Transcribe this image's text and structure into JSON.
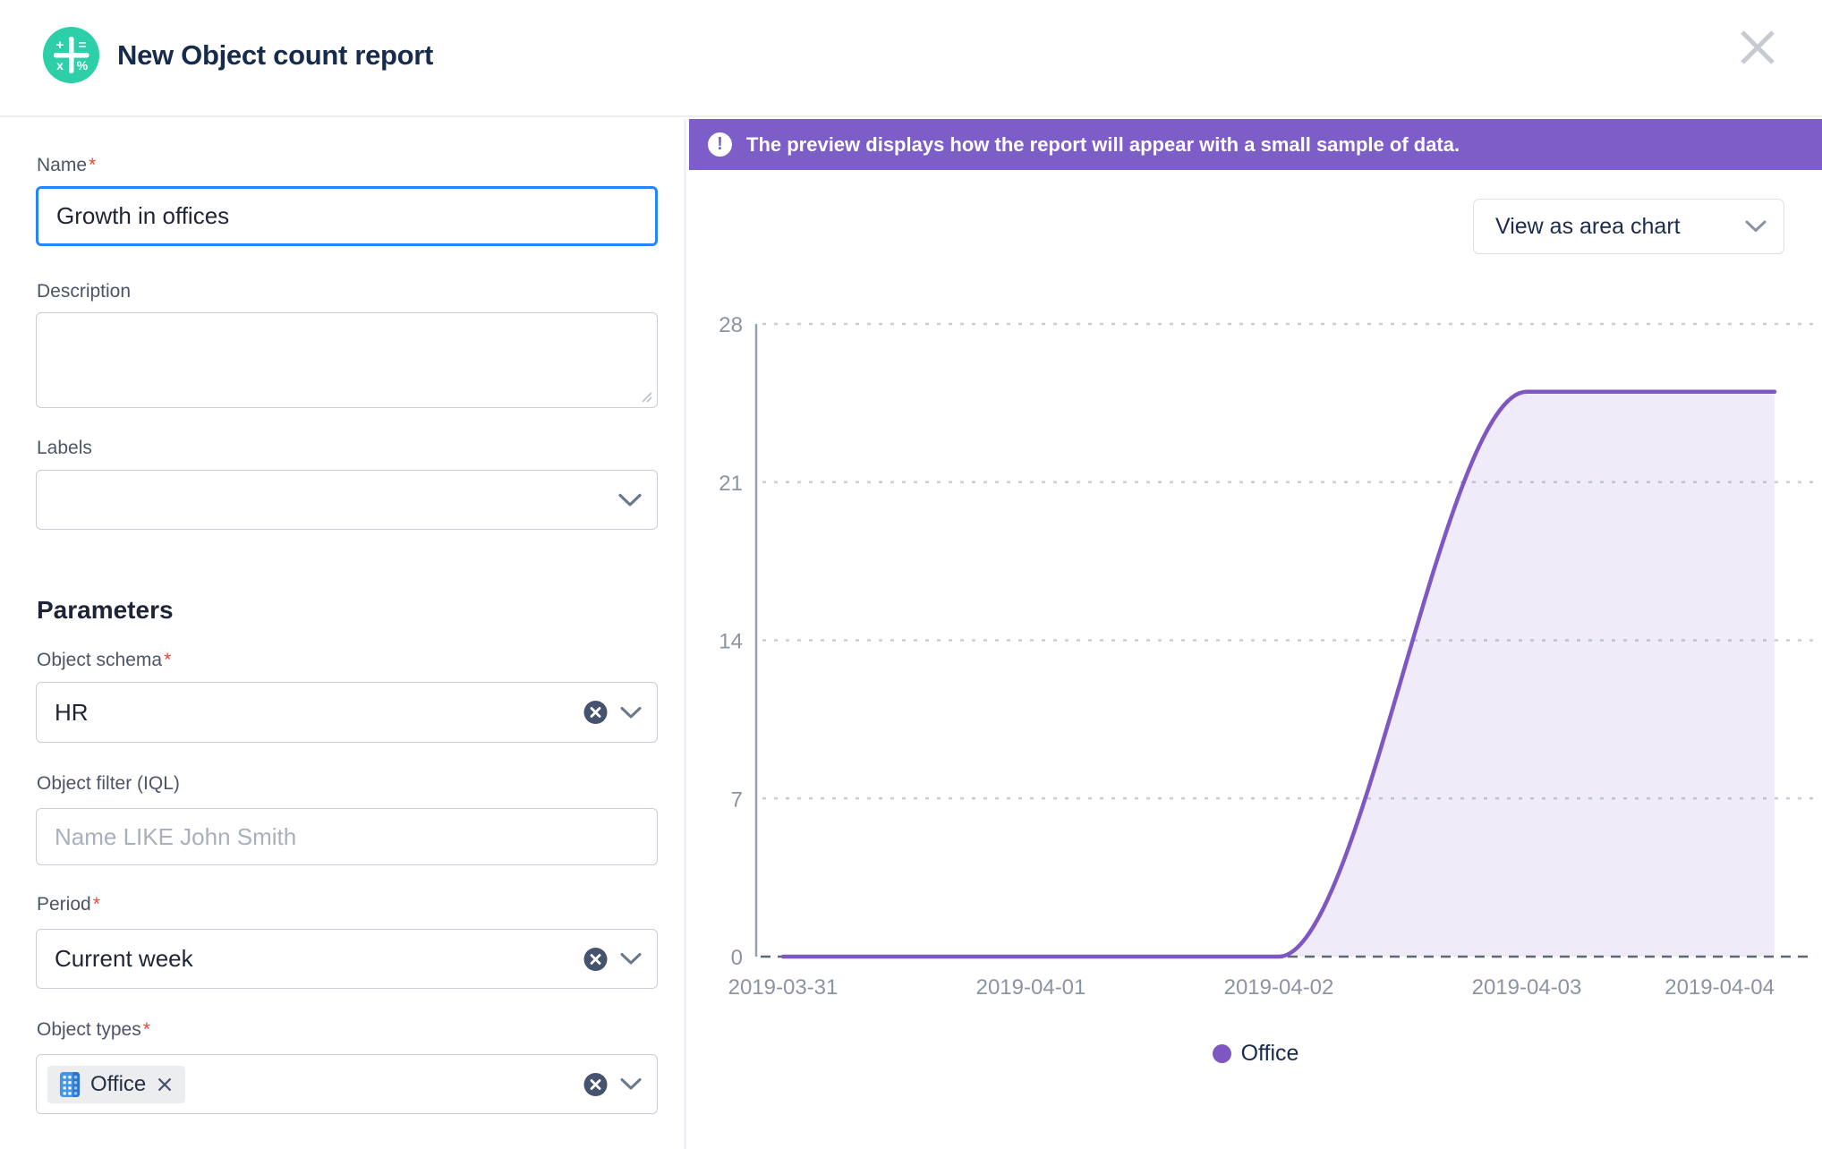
{
  "header": {
    "title": "New Object count report",
    "icon": "calculator-icon"
  },
  "colors": {
    "accent_teal": "#2CCFA7",
    "focus_blue": "#2684FF",
    "banner_purple": "#7D5DC8",
    "chart_purple": "#7E57C2",
    "title_navy": "#172B4D",
    "required_red": "#E8483B"
  },
  "form": {
    "name": {
      "label": "Name",
      "required_marker": "*",
      "value": "Growth in offices"
    },
    "description": {
      "label": "Description",
      "value": ""
    },
    "labels": {
      "label": "Labels",
      "value": ""
    },
    "parameters_heading": "Parameters",
    "object_schema": {
      "label": "Object schema",
      "required_marker": "*",
      "value": "HR"
    },
    "object_filter": {
      "label": "Object filter (IQL)",
      "placeholder": "Name LIKE John Smith",
      "value": ""
    },
    "period": {
      "label": "Period",
      "required_marker": "*",
      "value": "Current week"
    },
    "object_types": {
      "label": "Object types",
      "required_marker": "*",
      "tags": [
        {
          "label": "Office",
          "icon": "building-icon"
        }
      ]
    }
  },
  "preview": {
    "banner": {
      "text": "The preview displays how the report will appear with a small sample of data."
    },
    "view_as": {
      "value": "View as area chart"
    }
  },
  "chart_data": {
    "type": "area",
    "x": [
      "2019-03-31",
      "2019-04-01",
      "2019-04-02",
      "2019-04-03",
      "2019-04-04"
    ],
    "series": [
      {
        "name": "Office",
        "values": [
          0,
          0,
          0,
          25,
          25
        ],
        "color": "#7E57C2",
        "fill": "rgba(126,87,194,0.12)"
      }
    ],
    "ylim": [
      0,
      28
    ],
    "yticks": [
      0,
      7,
      14,
      21,
      28
    ],
    "xlabel": "",
    "ylabel": "",
    "grid": "dotted-horizontal",
    "legend_position": "bottom"
  }
}
